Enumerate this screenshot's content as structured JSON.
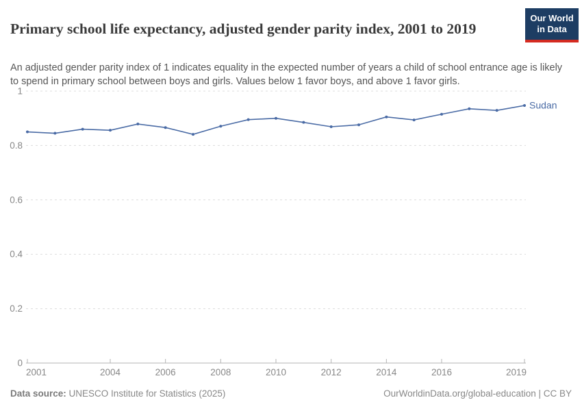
{
  "header": {
    "title": "Primary school life expectancy, adjusted gender parity index, 2001 to 2019",
    "subtitle": "An adjusted gender parity index of 1 indicates equality in the expected number of years a child of school entrance age is likely to spend in primary school between boys and girls. Values below 1 favor boys, and above 1 favor girls.",
    "logo": {
      "line1": "Our World",
      "line2": "in Data"
    }
  },
  "chart_data": {
    "type": "line",
    "title": "Primary school life expectancy, adjusted gender parity index, 2001 to 2019",
    "xlabel": "",
    "ylabel": "",
    "xlim": [
      2001,
      2019
    ],
    "ylim": [
      0,
      1
    ],
    "x_ticks": [
      2001,
      2004,
      2006,
      2008,
      2010,
      2012,
      2014,
      2016,
      2019
    ],
    "y_ticks": [
      0,
      0.2,
      0.4,
      0.6,
      0.8,
      1
    ],
    "grid": "horizontal-dashed",
    "legend_position": "end-of-line-label",
    "series": [
      {
        "name": "Sudan",
        "color": "#4a6ba5",
        "x": [
          2001,
          2002,
          2003,
          2004,
          2005,
          2006,
          2007,
          2008,
          2009,
          2010,
          2011,
          2012,
          2013,
          2014,
          2015,
          2016,
          2017,
          2018,
          2019
        ],
        "values": [
          0.85,
          0.845,
          0.86,
          0.856,
          0.879,
          0.866,
          0.841,
          0.871,
          0.895,
          0.9,
          0.885,
          0.869,
          0.876,
          0.905,
          0.894,
          0.915,
          0.935,
          0.929,
          0.947
        ]
      }
    ]
  },
  "footer": {
    "datasource_label": "Data source:",
    "datasource_value": "UNESCO Institute for Statistics (2025)",
    "credit": "OurWorldinData.org/global-education | CC BY"
  }
}
